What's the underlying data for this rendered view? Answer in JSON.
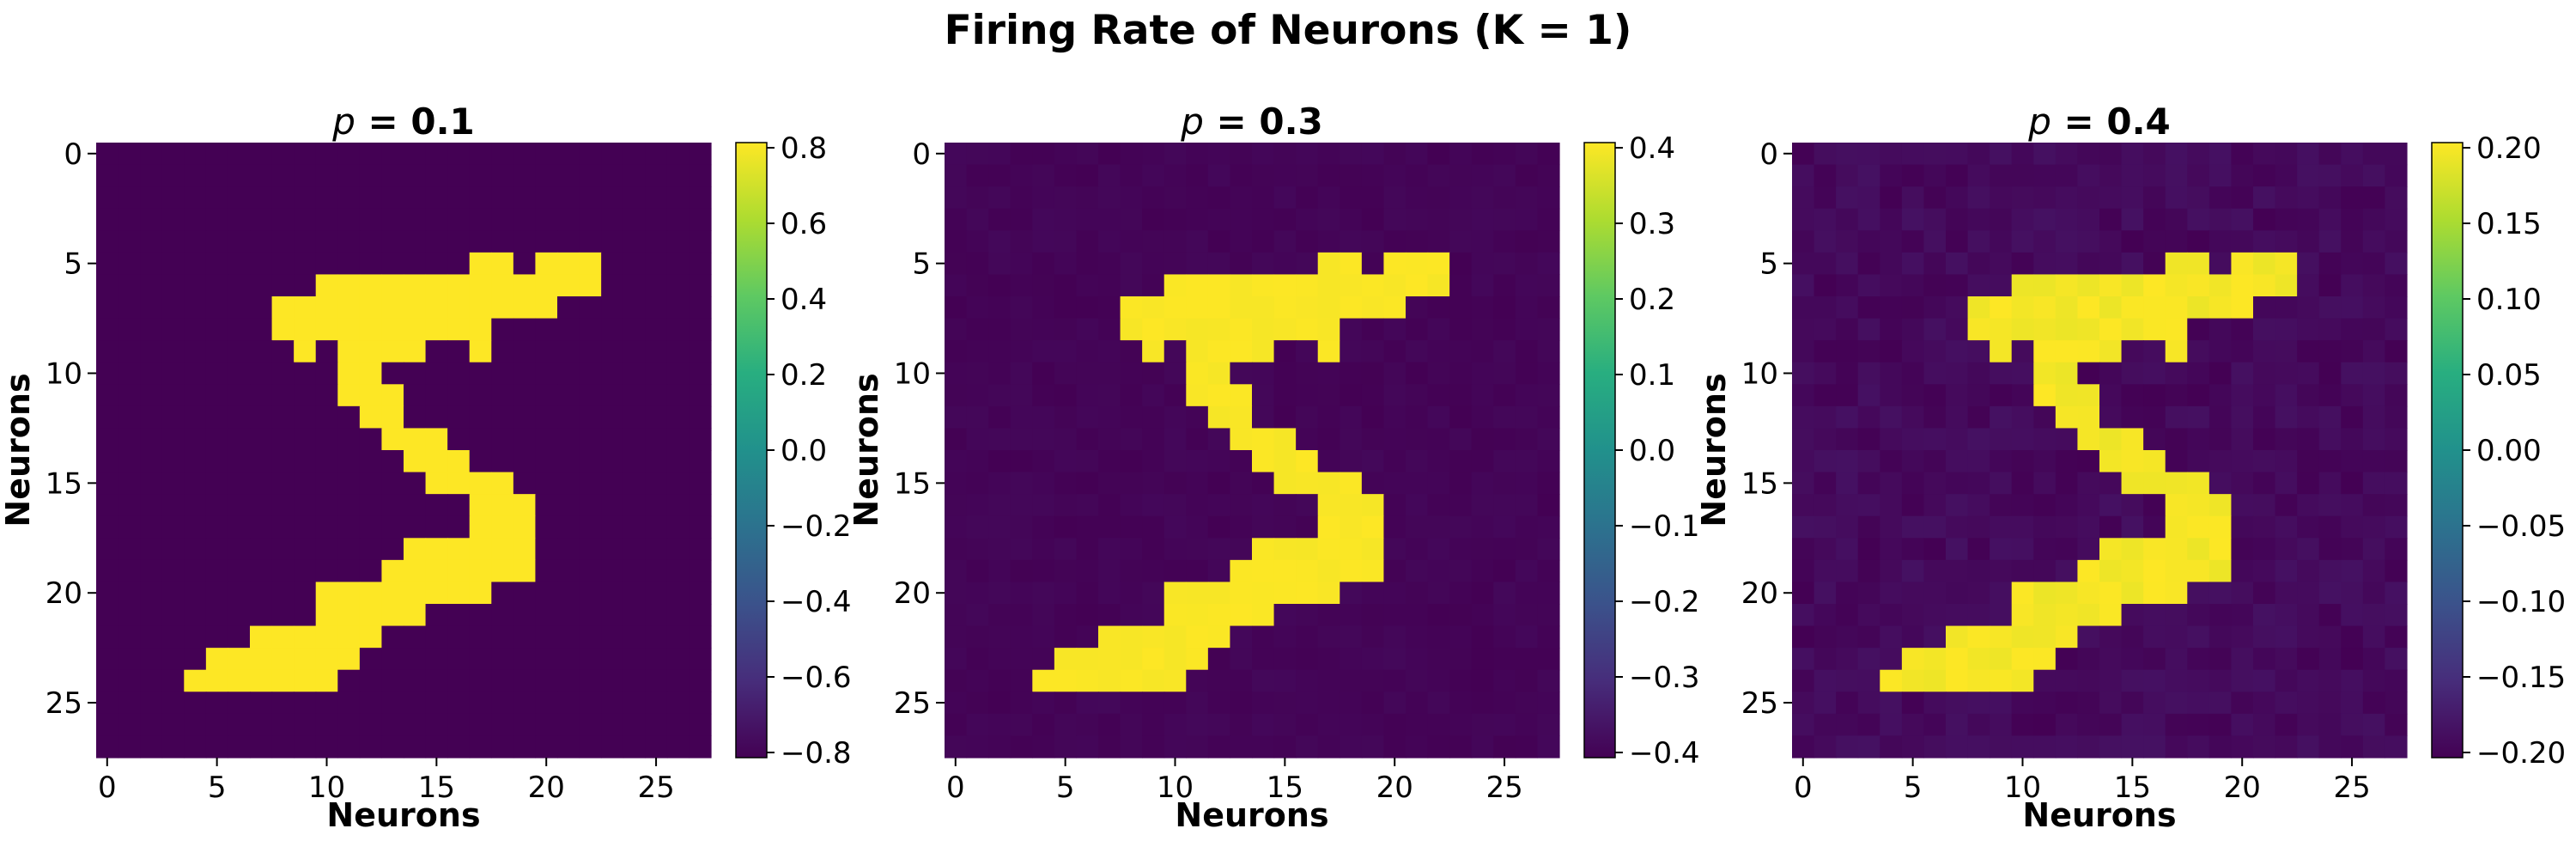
{
  "title": "Firing Rate of Neurons (K = 1)",
  "chart_data": [
    {
      "type": "heatmap",
      "title_symbol": "p",
      "title_value": " = 0.1",
      "xlabel": "Neurons",
      "ylabel": "Neurons",
      "grid_size": 28,
      "xticks": [
        "0",
        "5",
        "10",
        "15",
        "20",
        "25"
      ],
      "yticks": [
        "0",
        "5",
        "10",
        "15",
        "20",
        "25"
      ],
      "colorbar_ticks": [
        "0.8",
        "0.6",
        "0.4",
        "0.2",
        "0.0",
        "−0.2",
        "−0.4",
        "−0.6",
        "−0.8"
      ],
      "value_range": [
        -0.8,
        0.8
      ],
      "background_value": -0.8,
      "foreground_value": 0.8,
      "noise": 0.0,
      "grid": false
    },
    {
      "type": "heatmap",
      "title_symbol": "p",
      "title_value": " = 0.3",
      "xlabel": "Neurons",
      "ylabel": "Neurons",
      "grid_size": 28,
      "xticks": [
        "0",
        "5",
        "10",
        "15",
        "20",
        "25"
      ],
      "yticks": [
        "0",
        "5",
        "10",
        "15",
        "20",
        "25"
      ],
      "colorbar_ticks": [
        "0.4",
        "0.3",
        "0.2",
        "0.1",
        "0.0",
        "−0.1",
        "−0.2",
        "−0.3",
        "−0.4"
      ],
      "value_range": [
        -0.4,
        0.4
      ],
      "background_value": -0.4,
      "foreground_value": 0.4,
      "noise": 0.015,
      "grid": false
    },
    {
      "type": "heatmap",
      "title_symbol": "p",
      "title_value": " = 0.4",
      "xlabel": "Neurons",
      "ylabel": "Neurons",
      "grid_size": 28,
      "xticks": [
        "0",
        "5",
        "10",
        "15",
        "20",
        "25"
      ],
      "yticks": [
        "0",
        "5",
        "10",
        "15",
        "20",
        "25"
      ],
      "colorbar_ticks": [
        "0.20",
        "0.15",
        "0.10",
        "0.05",
        "0.00",
        "−0.05",
        "−0.10",
        "−0.15",
        "−0.20"
      ],
      "value_range": [
        -0.2,
        0.2
      ],
      "background_value": -0.2,
      "foreground_value": 0.2,
      "noise": 0.018,
      "grid": false
    }
  ],
  "digit_rows": [
    "",
    "",
    "",
    "",
    "",
    "17-18,20-22",
    "10-22",
    "8-20",
    "8-17",
    "9,11-14,17",
    "11-12",
    "11-13",
    "12-13",
    "13-15",
    "14-16",
    "15-18",
    "17-19",
    "17-19",
    "14-19",
    "13-19",
    "10-17",
    "10-14",
    "7-12",
    "5-11",
    "4-10",
    "",
    "",
    ""
  ]
}
